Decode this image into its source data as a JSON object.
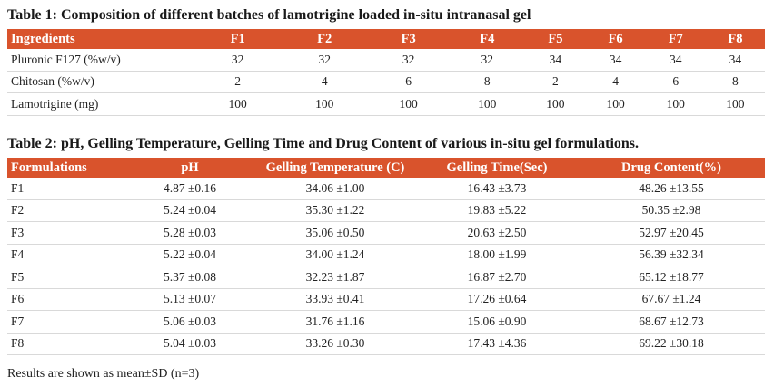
{
  "table1": {
    "caption": "Table 1: Composition of different batches of lamotrigine loaded in-situ intranasal gel",
    "headers": [
      "Ingredients",
      "F1",
      "F2",
      "F3",
      "F4",
      "F5",
      "F6",
      "F7",
      "F8"
    ],
    "rows": [
      [
        "Pluronic F127 (%w/v)",
        "32",
        "32",
        "32",
        "32",
        "34",
        "34",
        "34",
        "34"
      ],
      [
        "Chitosan (%w/v)",
        "2",
        "4",
        "6",
        "8",
        "2",
        "4",
        "6",
        "8"
      ],
      [
        "Lamotrigine (mg)",
        "100",
        "100",
        "100",
        "100",
        "100",
        "100",
        "100",
        "100"
      ]
    ]
  },
  "table2": {
    "caption": "Table 2: pH, Gelling Temperature, Gelling Time and Drug Content of various in-situ gel formulations.",
    "headers": [
      "Formulations",
      "pH",
      "Gelling Temperature (C)",
      "Gelling Time(Sec)",
      "Drug Content(%)"
    ],
    "rows": [
      [
        "F1",
        "4.87 ±0.16",
        "34.06 ±1.00",
        "16.43 ±3.73",
        "48.26 ±13.55"
      ],
      [
        "F2",
        "5.24 ±0.04",
        "35.30 ±1.22",
        "19.83 ±5.22",
        "50.35 ±2.98"
      ],
      [
        "F3",
        "5.28 ±0.03",
        "35.06 ±0.50",
        "20.63 ±2.50",
        "52.97 ±20.45"
      ],
      [
        "F4",
        "5.22 ±0.04",
        "34.00 ±1.24",
        "18.00 ±1.99",
        "56.39 ±32.34"
      ],
      [
        "F5",
        "5.37 ±0.08",
        "32.23 ±1.87",
        "16.87 ±2.70",
        "65.12 ±18.77"
      ],
      [
        "F6",
        "5.13 ±0.07",
        "33.93 ±0.41",
        "17.26 ±0.64",
        "67.67 ±1.24"
      ],
      [
        "F7",
        "5.06 ±0.03",
        "31.76 ±1.16",
        "15.06 ±0.90",
        "68.67 ±12.73"
      ],
      [
        "F8",
        "5.04 ±0.03",
        "33.26 ±0.30",
        "17.43 ±4.36",
        "69.22 ±30.18"
      ]
    ]
  },
  "footer": "Results are shown as mean±SD (n=3)",
  "colors": {
    "header_bg": "#d9532c",
    "header_text": "#ffffff"
  }
}
